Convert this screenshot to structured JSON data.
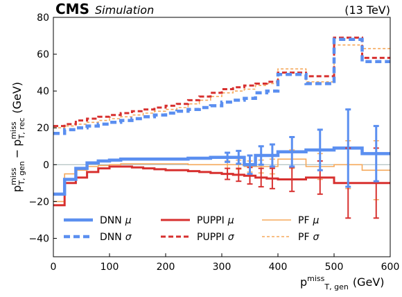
{
  "header": {
    "experiment": "CMS",
    "tag": "Simulation",
    "energy": "(13 TeV)"
  },
  "colors": {
    "DNN": "#5b8ff0",
    "PUPPI": "#d7302f",
    "PF": "#f5a85a"
  },
  "chart_data": {
    "type": "line",
    "xlabel_main": "p",
    "xlabel_sup": "miss",
    "xlabel_sub": "T, gen",
    "xlabel_unit": "(GeV)",
    "ylabel_main1": "p",
    "ylabel_sup1": "miss",
    "ylabel_sub1": "T, gen",
    "ylabel_op": "−",
    "ylabel_main2": "p",
    "ylabel_sup2": "miss",
    "ylabel_sub2": "T, rec",
    "ylabel_unit": "(GeV)",
    "xlim": [
      0,
      600
    ],
    "ylim": [
      -50,
      80
    ],
    "xticks": [
      0,
      100,
      200,
      300,
      400,
      500,
      600
    ],
    "yticks": [
      -40,
      -20,
      0,
      20,
      40,
      60,
      80
    ],
    "reference_line": 0,
    "bin_edges": [
      0,
      20,
      40,
      60,
      80,
      100,
      120,
      140,
      160,
      180,
      200,
      220,
      240,
      260,
      280,
      300,
      320,
      340,
      360,
      380,
      400,
      450,
      500,
      550,
      600
    ],
    "series": [
      {
        "name": "DNN μ",
        "group": "DNN",
        "style": "solid",
        "values": [
          -16,
          -8,
          -2,
          1,
          2,
          2.5,
          3,
          3,
          3,
          3,
          3,
          3,
          3.5,
          3.5,
          4,
          4,
          4,
          0,
          5,
          5,
          7,
          8,
          9,
          6
        ],
        "errors": [
          0,
          0,
          0,
          0,
          0,
          0,
          0,
          0,
          0,
          0,
          0,
          0,
          0,
          0,
          0,
          2.5,
          3.5,
          5,
          5,
          6,
          8,
          11,
          21,
          15
        ]
      },
      {
        "name": "DNN σ",
        "group": "DNN",
        "style": "dashed",
        "values": [
          17,
          19,
          20,
          21,
          22,
          23,
          24,
          25,
          26,
          27,
          28,
          29,
          30,
          31,
          32,
          34,
          35,
          36,
          39,
          40,
          49,
          44,
          68,
          56
        ]
      },
      {
        "name": "PUPPI μ",
        "group": "PUPPI",
        "style": "solid",
        "values": [
          -22,
          -10,
          -7,
          -4,
          -2,
          -1,
          -1,
          -1.5,
          -2,
          -2.5,
          -3,
          -3,
          -3.5,
          -4,
          -4.5,
          -5,
          -5.5,
          -6,
          -7,
          -7.5,
          -8,
          -7,
          -10,
          -10
        ],
        "errors": [
          0,
          0,
          0,
          0,
          0,
          0,
          0,
          0,
          0,
          0,
          0,
          0,
          0,
          0,
          0,
          3,
          3.5,
          4.5,
          5,
          5.5,
          6.5,
          9,
          19,
          19
        ]
      },
      {
        "name": "PUPPI σ",
        "group": "PUPPI",
        "style": "dashed",
        "values": [
          21,
          22,
          24,
          25,
          26,
          27,
          28,
          29,
          30,
          31,
          32,
          33,
          35,
          37,
          39,
          41,
          42,
          43,
          44,
          45,
          50,
          48,
          69,
          58
        ]
      },
      {
        "name": "PF μ",
        "group": "PF",
        "style": "solid",
        "values": [
          -20,
          -5,
          -3,
          -1,
          -0.5,
          0,
          0.5,
          0.5,
          0.5,
          0.5,
          0.5,
          0.5,
          0,
          0,
          0,
          0,
          0,
          -1,
          -1,
          -1,
          3,
          -1,
          0,
          -3
        ],
        "errors": [
          0,
          0,
          0,
          0,
          0,
          0,
          0,
          0,
          0,
          0,
          0,
          0,
          0,
          0,
          0,
          2,
          2.5,
          3,
          3.5,
          4,
          5,
          7,
          13,
          16
        ]
      },
      {
        "name": "PF σ",
        "group": "PF",
        "style": "dashed",
        "values": [
          20,
          21,
          22,
          23,
          24,
          25,
          26,
          27,
          28,
          29,
          30,
          31,
          33,
          35,
          37,
          39,
          40,
          41,
          43,
          44,
          52,
          45,
          65,
          63
        ]
      }
    ]
  },
  "legend": {
    "placement": "lower-left",
    "entries": [
      {
        "series": 0,
        "main": "DNN",
        "sym": "μ"
      },
      {
        "series": 2,
        "main": "PUPPI",
        "sym": "μ"
      },
      {
        "series": 4,
        "main": "PF",
        "sym": "μ"
      },
      {
        "series": 1,
        "main": "DNN",
        "sym": "σ"
      },
      {
        "series": 3,
        "main": "PUPPI",
        "sym": "σ"
      },
      {
        "series": 5,
        "main": "PF",
        "sym": "σ"
      }
    ]
  }
}
